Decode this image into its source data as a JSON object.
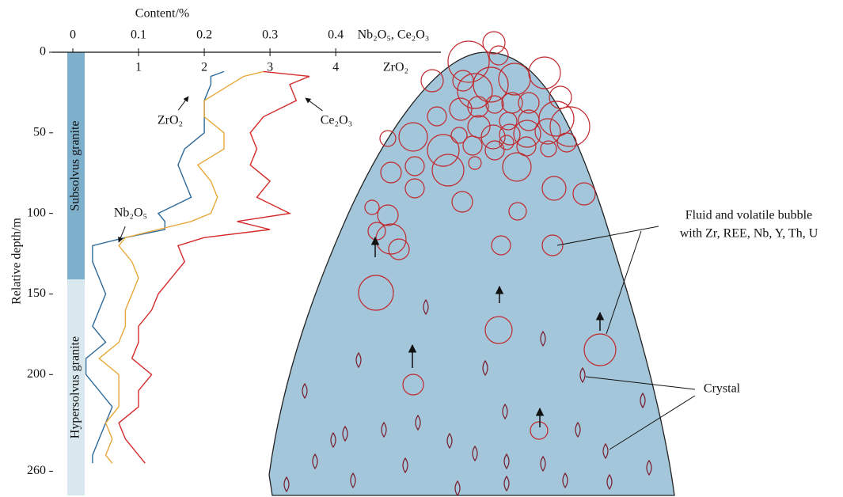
{
  "chart_data": {
    "type": "line",
    "orientation": "vertical",
    "x_title": "Content/%",
    "x_axis_label": "Nb₂O₅, Ce₂O₃",
    "x2_axis_label": "ZrO₂",
    "y_title": "Relative depth/m",
    "xlim": [
      0,
      0.56
    ],
    "xticks": [
      0,
      0.1,
      0.2,
      0.3,
      0.4
    ],
    "x2lim": [
      0,
      5.6
    ],
    "x2ticks": [
      1,
      2,
      3,
      4
    ],
    "ylim": [
      0,
      275
    ],
    "yticks": [
      0,
      50,
      100,
      150,
      200,
      260
    ],
    "y_inverted": true,
    "y": [
      12,
      15,
      20,
      30,
      40,
      50,
      60,
      70,
      80,
      90,
      100,
      105,
      110,
      115,
      120,
      130,
      140,
      150,
      160,
      170,
      180,
      190,
      200,
      210,
      220,
      230,
      240,
      250,
      255
    ],
    "series": [
      {
        "name": "Nb₂O₅",
        "color": "#2e6a9a",
        "values": [
          0.23,
          0.21,
          0.21,
          0.2,
          0.2,
          0.2,
          0.17,
          0.16,
          0.17,
          0.18,
          0.13,
          0.14,
          0.14,
          0.08,
          0.03,
          0.03,
          0.04,
          0.05,
          0.04,
          0.03,
          0.05,
          0.02,
          0.02,
          0.04,
          0.06,
          0.05,
          0.04,
          0.03,
          0.03
        ]
      },
      {
        "name": "ZrO₂",
        "color": "#e8a83a",
        "axis": "x2",
        "values": [
          2.9,
          2.6,
          2.4,
          2.0,
          2.0,
          2.3,
          2.3,
          1.9,
          2.1,
          2.2,
          2.1,
          1.8,
          1.3,
          0.8,
          0.7,
          0.9,
          1.0,
          0.9,
          0.8,
          0.8,
          0.7,
          0.4,
          0.7,
          0.7,
          0.7,
          0.5,
          0.6,
          0.5,
          0.6
        ]
      },
      {
        "name": "Ce₂O₃",
        "color": "#d42a2a",
        "values": [
          0.29,
          0.36,
          0.33,
          0.34,
          0.29,
          0.27,
          0.28,
          0.27,
          0.3,
          0.28,
          0.33,
          0.25,
          0.3,
          0.2,
          0.16,
          0.17,
          0.15,
          0.13,
          0.12,
          0.1,
          0.1,
          0.09,
          0.12,
          0.1,
          0.1,
          0.07,
          0.08,
          0.1,
          0.11
        ]
      }
    ],
    "zones": [
      {
        "label": "Subsolvus granite",
        "from": 0,
        "to": 141,
        "color": "#7fb0cb"
      },
      {
        "label": "Hypersolvus granite",
        "from": 141,
        "to": 275,
        "color": "#d8e8ee"
      }
    ]
  },
  "diagram": {
    "bubble_label": [
      "Fluid and volatile bubble",
      "with Zr, REE, Nb, Y, Th, U"
    ],
    "crystal_label": "Crystal"
  }
}
